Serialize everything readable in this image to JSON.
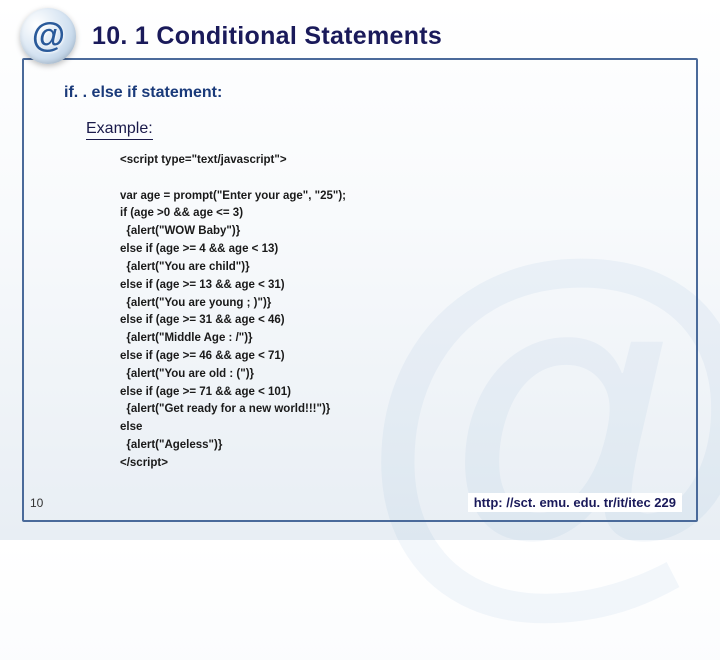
{
  "header": {
    "icon_glyph": "@",
    "title": "10. 1  Conditional Statements"
  },
  "subheading": "if. . else if statement:",
  "example_label": "Example:",
  "code": "<script type=\"text/javascript\">\n\nvar age = prompt(\"Enter your age\", \"25\");\nif (age >0 && age <= 3)\n  {alert(\"WOW Baby\")}\nelse if (age >= 4 && age < 13)\n  {alert(\"You are child\")}\nelse if (age >= 13 && age < 31)\n  {alert(\"You are young ; )\")}\nelse if (age >= 31 && age < 46)\n  {alert(\"Middle Age : /\")}\nelse if (age >= 46 && age < 71)\n  {alert(\"You are old : (\")}\nelse if (age >= 71 && age < 101)\n  {alert(\"Get ready for a new world!!!\")}\nelse\n  {alert(\"Ageless\")}\n</scr_ipt>",
  "page_number": "10",
  "footer_url": "http: //sct. emu. edu. tr/it/itec 229"
}
